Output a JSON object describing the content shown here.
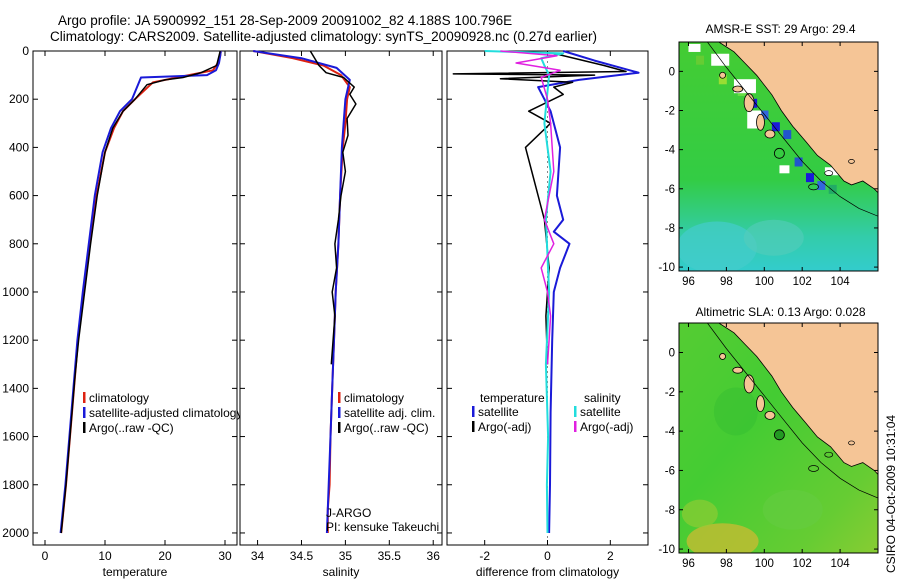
{
  "header": {
    "line1": "Argo profile: JA 5900992_151 28-Sep-2009 20091002_82 4.188S 100.796E",
    "line2": "Climatology: CARS2009. Satellite-adjusted climatology: synTS_20090928.nc (0.27d earlier)"
  },
  "side_label": "CSIRO 04-Oct-2009 10:31:04",
  "colors": {
    "climatology": "#dd2211",
    "satellite": "#1a1ad8",
    "argo": "#000000",
    "satellite_salinity": "#22dddd",
    "argo_salinity": "#e020e0",
    "land": "#f5c596",
    "sea_green": "#33cc33"
  },
  "chart_data": [
    {
      "type": "line",
      "panel": "temperature",
      "xlabel": "temperature",
      "ylabel": "",
      "xlim": [
        -2,
        32
      ],
      "ylim": [
        2050,
        0
      ],
      "xticks": [
        0,
        10,
        20,
        30
      ],
      "xticklabels": [
        "0",
        "10",
        "20",
        "30"
      ],
      "yticks": [
        0,
        200,
        400,
        600,
        800,
        1000,
        1200,
        1400,
        1600,
        1800,
        2000
      ],
      "yticklabels": [
        "0",
        "200",
        "400",
        "600",
        "800",
        "1000",
        "1200",
        "1400",
        "1600",
        "1800",
        "2000"
      ],
      "legend": [
        "climatology",
        "satellite-adjusted climatology",
        "Argo(..raw -QC)"
      ],
      "series": [
        {
          "name": "climatology",
          "color": "#dd2211",
          "width": 2,
          "x": [
            29.3,
            29.2,
            28.8,
            28,
            24,
            18,
            15,
            13,
            11.5,
            10,
            8.6,
            7.5,
            6.5,
            5.5,
            5,
            4.5,
            4,
            3.5,
            3.1,
            2.7
          ],
          "y": [
            0,
            20,
            50,
            80,
            100,
            130,
            200,
            250,
            320,
            420,
            600,
            800,
            1000,
            1200,
            1350,
            1500,
            1650,
            1800,
            1900,
            2000
          ]
        },
        {
          "name": "satellite-adjusted climatology",
          "color": "#1a1ad8",
          "width": 2,
          "x": [
            29.3,
            29.2,
            29,
            28.5,
            27,
            16,
            14.5,
            12.5,
            11,
            9.6,
            8.3,
            7.3,
            6.3,
            5.4,
            4.9,
            4.4,
            3.9,
            3.4,
            3,
            2.6
          ],
          "y": [
            0,
            20,
            50,
            80,
            100,
            110,
            200,
            250,
            320,
            420,
            600,
            800,
            1000,
            1200,
            1350,
            1500,
            1650,
            1800,
            1900,
            2000
          ]
        },
        {
          "name": "Argo(..raw -QC)",
          "color": "#000000",
          "width": 1.5,
          "x": [
            29.2,
            28.6,
            26,
            23,
            20,
            17,
            15,
            13,
            11.3,
            10,
            8.7,
            7.6,
            6.6,
            5.6,
            5,
            4.5,
            4,
            3.5,
            3.1,
            2.7
          ],
          "y": [
            0,
            60,
            90,
            110,
            120,
            140,
            200,
            250,
            320,
            420,
            600,
            800,
            1000,
            1200,
            1350,
            1500,
            1650,
            1800,
            1900,
            2000
          ]
        }
      ]
    },
    {
      "type": "line",
      "panel": "salinity",
      "xlabel": "salinity",
      "ylabel": "",
      "xlim": [
        33.8,
        36.1
      ],
      "ylim": [
        2050,
        0
      ],
      "xticks": [
        34,
        34.5,
        35,
        35.5,
        36
      ],
      "xticklabels": [
        "34",
        "34.5",
        "35",
        "35.5",
        "36"
      ],
      "legend": [
        "climatology",
        "satellite adj. clim.",
        "Argo(..raw -QC)"
      ],
      "annotations": [
        "J-ARGO",
        "PI: kensuke Takeuchi"
      ],
      "series": [
        {
          "name": "climatology",
          "color": "#dd2211",
          "width": 2,
          "x": [
            33.95,
            34.4,
            34.75,
            34.95,
            35.05,
            35.02,
            35.0,
            34.97,
            34.94,
            34.92,
            34.89,
            34.87,
            34.85,
            34.83,
            34.82,
            34.8,
            34.8
          ],
          "y": [
            0,
            30,
            60,
            100,
            150,
            200,
            300,
            400,
            600,
            800,
            1000,
            1200,
            1400,
            1600,
            1800,
            1900,
            2000
          ]
        },
        {
          "name": "satellite adj. clim.",
          "color": "#1a1ad8",
          "width": 2,
          "x": [
            33.95,
            34.5,
            34.9,
            35.05,
            35.0,
            34.98,
            34.96,
            34.94,
            34.92,
            34.89,
            34.87,
            34.85,
            34.83,
            34.81,
            34.8,
            34.79
          ],
          "y": [
            0,
            30,
            70,
            120,
            200,
            300,
            400,
            600,
            800,
            1000,
            1200,
            1400,
            1600,
            1800,
            1900,
            2000
          ]
        },
        {
          "name": "Argo(..raw -QC)",
          "color": "#000000",
          "width": 1.5,
          "x": [
            34.6,
            34.7,
            34.78,
            34.98,
            35.1,
            35.05,
            35.12,
            35.02,
            35.03,
            34.97,
            35.0,
            34.95,
            34.92,
            34.88,
            34.9,
            34.85,
            34.88,
            34.86,
            34.84
          ],
          "y": [
            0,
            60,
            90,
            110,
            150,
            180,
            220,
            280,
            350,
            420,
            500,
            600,
            700,
            800,
            900,
            1000,
            1100,
            1200,
            1300
          ]
        }
      ]
    },
    {
      "type": "line",
      "panel": "difference",
      "xlabel": "difference from climatology",
      "ylabel": "",
      "xlim": [
        -3.2,
        3.2
      ],
      "ylim": [
        2050,
        0
      ],
      "xticks": [
        -2,
        0,
        2
      ],
      "xticklabels": [
        "-2",
        "0",
        "2"
      ],
      "legend_groups": [
        {
          "title": "temperature",
          "items": [
            "satellite",
            "Argo(-adj)"
          ]
        },
        {
          "title": "salinity",
          "items": [
            "satellite",
            "Argo(-adj)"
          ]
        }
      ],
      "series": [
        {
          "name": "temperature satellite",
          "color": "#1a1ad8",
          "width": 2,
          "x": [
            0.5,
            1.5,
            2.9,
            1.0,
            -0.3,
            0.1,
            0.4,
            0.3,
            0.5,
            0.2,
            0.7,
            0.4,
            0.2,
            0.15,
            0.1,
            0.08,
            0.05
          ],
          "y": [
            0,
            40,
            90,
            120,
            150,
            250,
            400,
            600,
            700,
            750,
            800,
            900,
            1000,
            1200,
            1500,
            1800,
            2000
          ]
        },
        {
          "name": "temperature Argo(-adj)",
          "color": "#000000",
          "width": 1.5,
          "x": [
            0.2,
            1.8,
            2.5,
            -3.0,
            1.5,
            -1.5,
            0.8,
            0.2,
            0.5,
            -0.6,
            0.1,
            -0.3,
            -0.7,
            -0.5,
            -0.3,
            -0.1,
            0.05,
            -0.05,
            0.0
          ],
          "y": [
            10,
            60,
            85,
            95,
            100,
            115,
            130,
            150,
            180,
            250,
            300,
            350,
            400,
            500,
            600,
            700,
            900,
            1100,
            1300
          ]
        },
        {
          "name": "salinity satellite",
          "color": "#22dddd",
          "width": 2,
          "x": [
            -2.0,
            0.5,
            -0.2,
            -0.1,
            0.05,
            -0.1,
            0.1,
            -0.05,
            0.05,
            -0.05,
            0.02,
            -0.02,
            0.0
          ],
          "y": [
            0,
            10,
            30,
            60,
            100,
            300,
            500,
            700,
            1000,
            1300,
            1600,
            1800,
            2000
          ]
        },
        {
          "name": "salinity Argo(-adj)",
          "color": "#e020e0",
          "width": 1.5,
          "x": [
            -1.5,
            0.3,
            -1.0,
            0.4,
            -0.2,
            0.0,
            0.1,
            0.2,
            -0.1,
            0.2,
            -0.2,
            0.0,
            0.1,
            0.05,
            0.0
          ],
          "y": [
            0,
            20,
            50,
            80,
            110,
            200,
            300,
            500,
            700,
            800,
            900,
            1000,
            1100,
            1200,
            1300
          ]
        }
      ]
    },
    {
      "type": "heatmap",
      "panel": "map-sst",
      "title": "AMSR-E SST: 29 Argo: 29.4",
      "xlim": [
        95.5,
        106
      ],
      "ylim": [
        -10.2,
        1.5
      ],
      "xticks": [
        96,
        98,
        100,
        102,
        104
      ],
      "xticklabels": [
        "96",
        "98",
        "100",
        "102",
        "104"
      ],
      "yticks": [
        0,
        -2,
        -4,
        -6,
        -8,
        -10
      ],
      "yticklabels": [
        "0",
        "-2",
        "-4",
        "-6",
        "-8",
        "-10"
      ],
      "marker": {
        "lon": 100.796,
        "lat": -4.188
      }
    },
    {
      "type": "heatmap",
      "panel": "map-sla",
      "title": "Altimetric SLA: 0.13 Argo: 0.028",
      "xlim": [
        95.5,
        106
      ],
      "ylim": [
        -10.2,
        1.5
      ],
      "xticks": [
        96,
        98,
        100,
        102,
        104
      ],
      "xticklabels": [
        "96",
        "98",
        "100",
        "102",
        "104"
      ],
      "yticks": [
        0,
        -2,
        -4,
        -6,
        -8,
        -10
      ],
      "yticklabels": [
        "0",
        "-2",
        "-4",
        "-6",
        "-8",
        "-10"
      ],
      "marker": {
        "lon": 100.796,
        "lat": -4.188
      }
    }
  ]
}
